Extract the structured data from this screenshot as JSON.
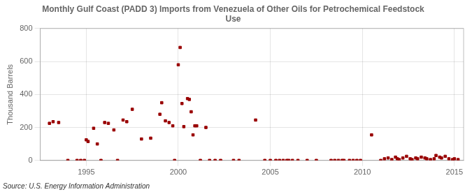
{
  "chart_data": {
    "type": "scatter",
    "title": "Monthly Gulf Coast (PADD 3) Imports from Venezuela of Other Oils for Petrochemical Feedstock\nUse",
    "ylabel": "Thousand Barrels",
    "annotations": [
      "Source: U.S. Energy Information Administration"
    ],
    "color": "#990000",
    "marker": "square",
    "grid": true,
    "xlim": [
      1992.5,
      2015.5
    ],
    "ylim": [
      0,
      800
    ],
    "xticks": [
      1995,
      2000,
      2005,
      2010,
      2015
    ],
    "yticks": [
      0,
      200,
      400,
      600,
      800
    ],
    "x": [
      1993.0,
      1993.2,
      1993.5,
      1994.0,
      1994.5,
      1994.7,
      1994.9,
      1995.0,
      1995.1,
      1995.4,
      1995.6,
      1995.8,
      1996.0,
      1996.2,
      1996.5,
      1996.7,
      1997.0,
      1997.2,
      1997.5,
      1998.0,
      1998.5,
      1999.0,
      1999.1,
      1999.3,
      1999.5,
      1999.7,
      1999.8,
      2000.0,
      2000.1,
      2000.2,
      2000.3,
      2000.5,
      2000.6,
      2000.7,
      2000.8,
      2000.9,
      2001.0,
      2001.2,
      2001.5,
      2001.7,
      2002.0,
      2002.3,
      2003.0,
      2003.3,
      2004.2,
      2004.7,
      2005.0,
      2005.3,
      2005.5,
      2005.7,
      2005.9,
      2006.0,
      2006.2,
      2006.5,
      2007.0,
      2007.5,
      2008.3,
      2008.5,
      2008.7,
      2008.9,
      2009.0,
      2009.3,
      2009.5,
      2009.7,
      2009.9,
      2010.5,
      2011.0,
      2011.2,
      2011.4,
      2011.6,
      2011.8,
      2011.9,
      2012.0,
      2012.2,
      2012.4,
      2012.6,
      2012.7,
      2012.9,
      2013.0,
      2013.2,
      2013.4,
      2013.5,
      2013.7,
      2013.9,
      2014.0,
      2014.2,
      2014.3,
      2014.5,
      2014.7,
      2014.9,
      2015.0,
      2015.2
    ],
    "values": [
      225,
      235,
      230,
      0,
      0,
      0,
      0,
      125,
      115,
      195,
      100,
      0,
      230,
      225,
      185,
      0,
      245,
      235,
      310,
      130,
      135,
      280,
      350,
      240,
      230,
      210,
      0,
      580,
      685,
      345,
      205,
      375,
      370,
      295,
      155,
      210,
      210,
      0,
      200,
      0,
      0,
      0,
      0,
      0,
      245,
      0,
      0,
      0,
      0,
      0,
      0,
      0,
      0,
      0,
      0,
      0,
      0,
      0,
      0,
      0,
      0,
      0,
      0,
      0,
      0,
      155,
      0,
      10,
      15,
      5,
      20,
      10,
      5,
      15,
      25,
      10,
      5,
      15,
      10,
      20,
      15,
      10,
      5,
      10,
      30,
      20,
      15,
      25,
      10,
      5,
      10,
      5
    ]
  }
}
